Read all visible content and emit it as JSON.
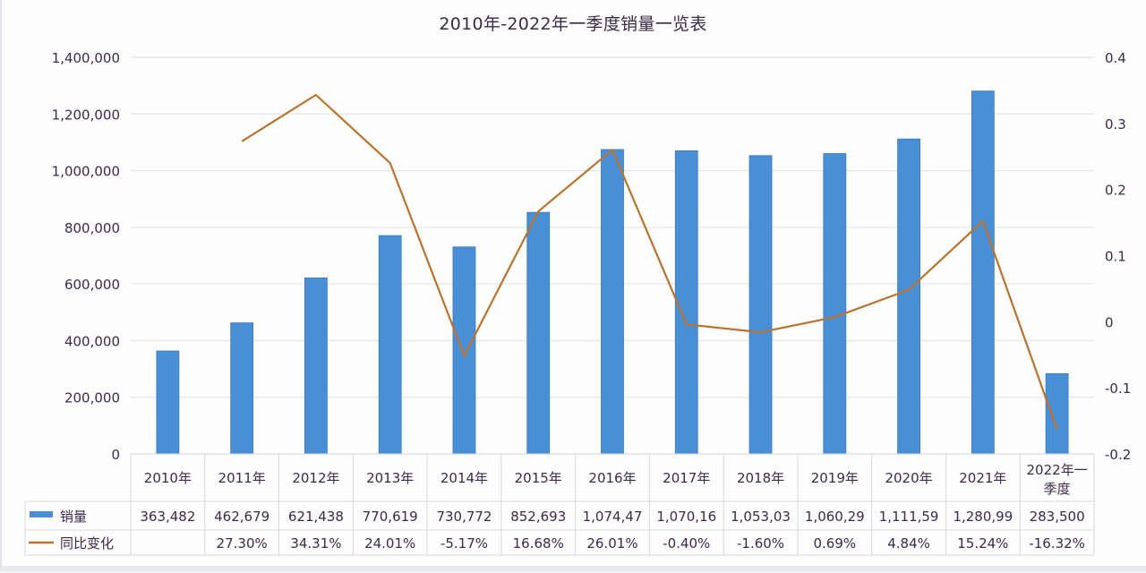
{
  "title": "2010年-2022年一季度销量一览表",
  "colors": {
    "bar": "#4a8ed6",
    "bar_edge": "#3c7bc2",
    "line": "#b8742e",
    "grid": "#e4e6ea",
    "text": "#3b2a4a",
    "background": "#fdfdfe"
  },
  "axes": {
    "left_ticks": [
      "0",
      "200,000",
      "400,000",
      "600,000",
      "800,000",
      "1,000,000",
      "1,200,000",
      "1,400,000"
    ],
    "right_ticks": [
      "-0.2",
      "-0.1",
      "0",
      "0.1",
      "0.2",
      "0.3",
      "0.4"
    ]
  },
  "table": {
    "header": [
      "2010年",
      "2011年",
      "2012年",
      "2013年",
      "2014年",
      "2015年",
      "2016年",
      "2017年",
      "2018年",
      "2019年",
      "2020年",
      "2021年",
      "2022年一季度"
    ],
    "header_wrapped_last": [
      "2022年一",
      "季度"
    ],
    "rows": [
      {
        "legend": "销量",
        "cells": [
          "363,482",
          "462,679",
          "621,438",
          "770,619",
          "730,772",
          "852,693",
          "1,074,47",
          "1,070,16",
          "1,053,03",
          "1,060,29",
          "1,111,59",
          "1,280,99",
          "283,500"
        ]
      },
      {
        "legend": "同比变化",
        "cells": [
          "",
          "27.30%",
          "34.31%",
          "24.01%",
          "-5.17%",
          "16.68%",
          "26.01%",
          "-0.40%",
          "-1.60%",
          "0.69%",
          "4.84%",
          "15.24%",
          "-16.32%"
        ]
      }
    ]
  },
  "chart_data": {
    "type": "bar",
    "title": "2010年-2022年一季度销量一览表",
    "categories": [
      "2010年",
      "2011年",
      "2012年",
      "2013年",
      "2014年",
      "2015年",
      "2016年",
      "2017年",
      "2018年",
      "2019年",
      "2020年",
      "2021年",
      "2022年一季度"
    ],
    "series": [
      {
        "name": "销量",
        "type": "bar",
        "axis": "left",
        "values": [
          363482,
          462679,
          621438,
          770619,
          730772,
          852693,
          1074470,
          1070160,
          1053030,
          1060290,
          1111590,
          1280990,
          283500
        ]
      },
      {
        "name": "同比变化",
        "type": "line",
        "axis": "right",
        "values": [
          null,
          0.273,
          0.3431,
          0.2401,
          -0.0517,
          0.1668,
          0.2601,
          -0.004,
          -0.016,
          0.0069,
          0.0484,
          0.1524,
          -0.1632
        ]
      }
    ],
    "xlabel": "",
    "ylabel": "",
    "ylim": [
      0,
      1400000
    ],
    "y2lim": [
      -0.2,
      0.4
    ],
    "y_ticks": [
      0,
      200000,
      400000,
      600000,
      800000,
      1000000,
      1200000,
      1400000
    ],
    "y2_ticks": [
      -0.2,
      -0.1,
      0,
      0.1,
      0.2,
      0.3,
      0.4
    ],
    "grid": true,
    "legend_position": "data-table-bottom"
  }
}
